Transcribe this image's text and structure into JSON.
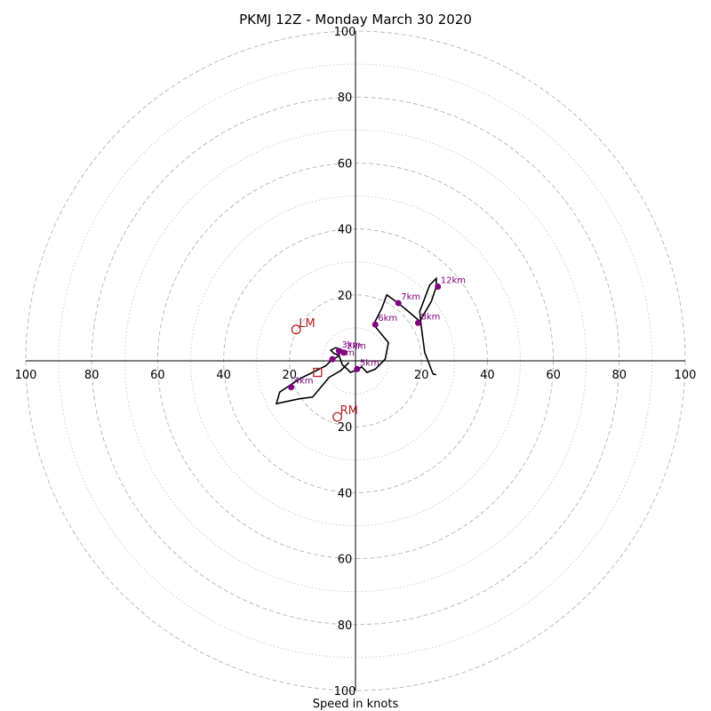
{
  "chart_data": {
    "type": "hodograph",
    "title": "PKMJ 12Z - Monday March 30 2020",
    "xlabel": "Speed in knots",
    "max_speed": 100,
    "rings_major": [
      20,
      40,
      60,
      80,
      100
    ],
    "rings_minor": [
      10,
      30,
      50,
      70,
      90
    ],
    "tick_labels": {
      "x_left": [
        "100",
        "80",
        "60",
        "40",
        "20"
      ],
      "x_right": [
        "20",
        "40",
        "60",
        "80",
        "100"
      ],
      "y_top": [
        "100",
        "80",
        "60",
        "40",
        "20"
      ],
      "y_bottom": [
        "20",
        "40",
        "60",
        "80",
        "100"
      ]
    },
    "hodograph_line": [
      [
        24.5,
        -4.2
      ],
      [
        23.5,
        -4.0
      ],
      [
        22,
        0
      ],
      [
        21,
        2.5
      ],
      [
        20,
        10
      ],
      [
        19.5,
        15
      ],
      [
        22.5,
        23
      ],
      [
        24.5,
        25
      ],
      [
        24.5,
        22.5
      ],
      [
        23,
        18
      ],
      [
        19.5,
        12
      ],
      [
        16,
        15
      ],
      [
        13,
        17.5
      ],
      [
        9.5,
        20
      ],
      [
        8,
        16
      ],
      [
        5.5,
        11
      ],
      [
        10,
        5.5
      ],
      [
        9,
        0.5
      ],
      [
        6,
        -2.5
      ],
      [
        3.5,
        -3.5
      ],
      [
        1.8,
        -1.8
      ],
      [
        1,
        -2.5
      ],
      [
        -1.5,
        -3.5
      ],
      [
        -2.5,
        -2.5
      ],
      [
        -4,
        -1.2
      ],
      [
        -5,
        1.7
      ],
      [
        -6.5,
        2.2
      ],
      [
        -7.5,
        3.2
      ],
      [
        -6,
        4
      ],
      [
        -4.5,
        3.5
      ],
      [
        -5,
        1.5
      ],
      [
        -7.5,
        0
      ],
      [
        -9,
        -1.5
      ],
      [
        -12,
        -3
      ],
      [
        -17,
        -5.5
      ],
      [
        -23,
        -9.5
      ],
      [
        -24,
        -13
      ],
      [
        -17,
        -11.5
      ],
      [
        -13,
        -11
      ],
      [
        -8,
        -5
      ],
      [
        -4.5,
        -3
      ],
      [
        -2,
        -0.5
      ]
    ],
    "height_markers": [
      {
        "label": "12km",
        "u": 25,
        "v": 22.5
      },
      {
        "label": "8km",
        "u": 19,
        "v": 11.5
      },
      {
        "label": "7km",
        "u": 13,
        "v": 17.5
      },
      {
        "label": "6km",
        "u": 6,
        "v": 11
      },
      {
        "label": "5km",
        "u": 0.5,
        "v": -2.5
      },
      {
        "label": "3km",
        "u": -5,
        "v": 3
      },
      {
        "label": "2km",
        "u": -3.5,
        "v": 2.5
      },
      {
        "label": "1km",
        "u": -7,
        "v": 0.5
      },
      {
        "label": "4km",
        "u": -19.5,
        "v": -8
      }
    ],
    "storm_motion": [
      {
        "label": "LM",
        "u": -18,
        "v": 9.5,
        "shape": "circle"
      },
      {
        "label": "RM",
        "u": -5.5,
        "v": -17,
        "shape": "circle"
      },
      {
        "label": "",
        "u": -11.5,
        "v": -3.5,
        "shape": "square"
      }
    ],
    "colors": {
      "hodograph": "#000000",
      "height_markers": "#800080",
      "storm_motion": "#b22222",
      "ring": "#bdbdbd"
    }
  }
}
